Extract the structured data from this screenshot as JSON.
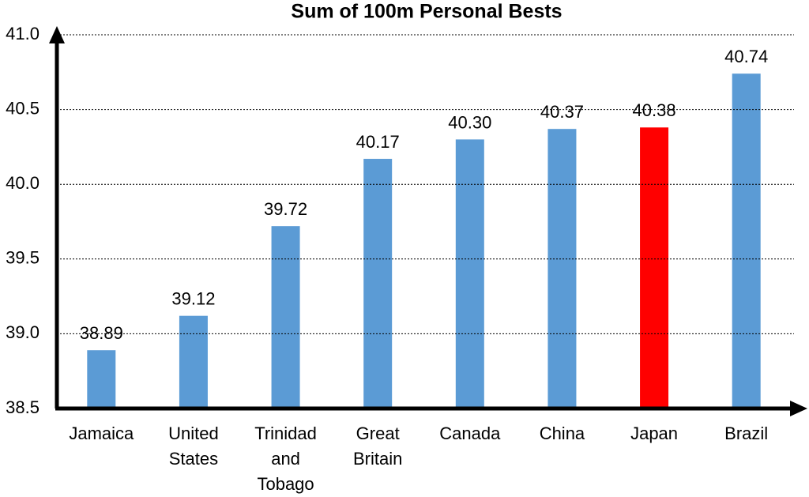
{
  "chart_data": {
    "type": "bar",
    "title": "Sum of 100m Personal Bests",
    "categories": [
      "Jamaica",
      "United States",
      "Trinidad and Tobago",
      "Great Britain",
      "Canada",
      "China",
      "Japan",
      "Brazil"
    ],
    "values": [
      38.89,
      39.12,
      39.72,
      40.17,
      40.3,
      40.37,
      40.38,
      40.74
    ],
    "value_labels": [
      "38.89",
      "39.12",
      "39.72",
      "40.17",
      "40.30",
      "40.37",
      "40.38",
      "40.74"
    ],
    "colors": [
      "#5b9bd5",
      "#5b9bd5",
      "#5b9bd5",
      "#5b9bd5",
      "#5b9bd5",
      "#5b9bd5",
      "#ff0000",
      "#5b9bd5"
    ],
    "ylim": [
      38.5,
      41
    ],
    "yticks": [
      38.5,
      {
        "value": 39,
        "label": "39.0"
      },
      39.5,
      {
        "value": 40,
        "label": "40.0"
      },
      40.5,
      {
        "value": 41,
        "label": "41.0"
      }
    ],
    "grid": true
  }
}
